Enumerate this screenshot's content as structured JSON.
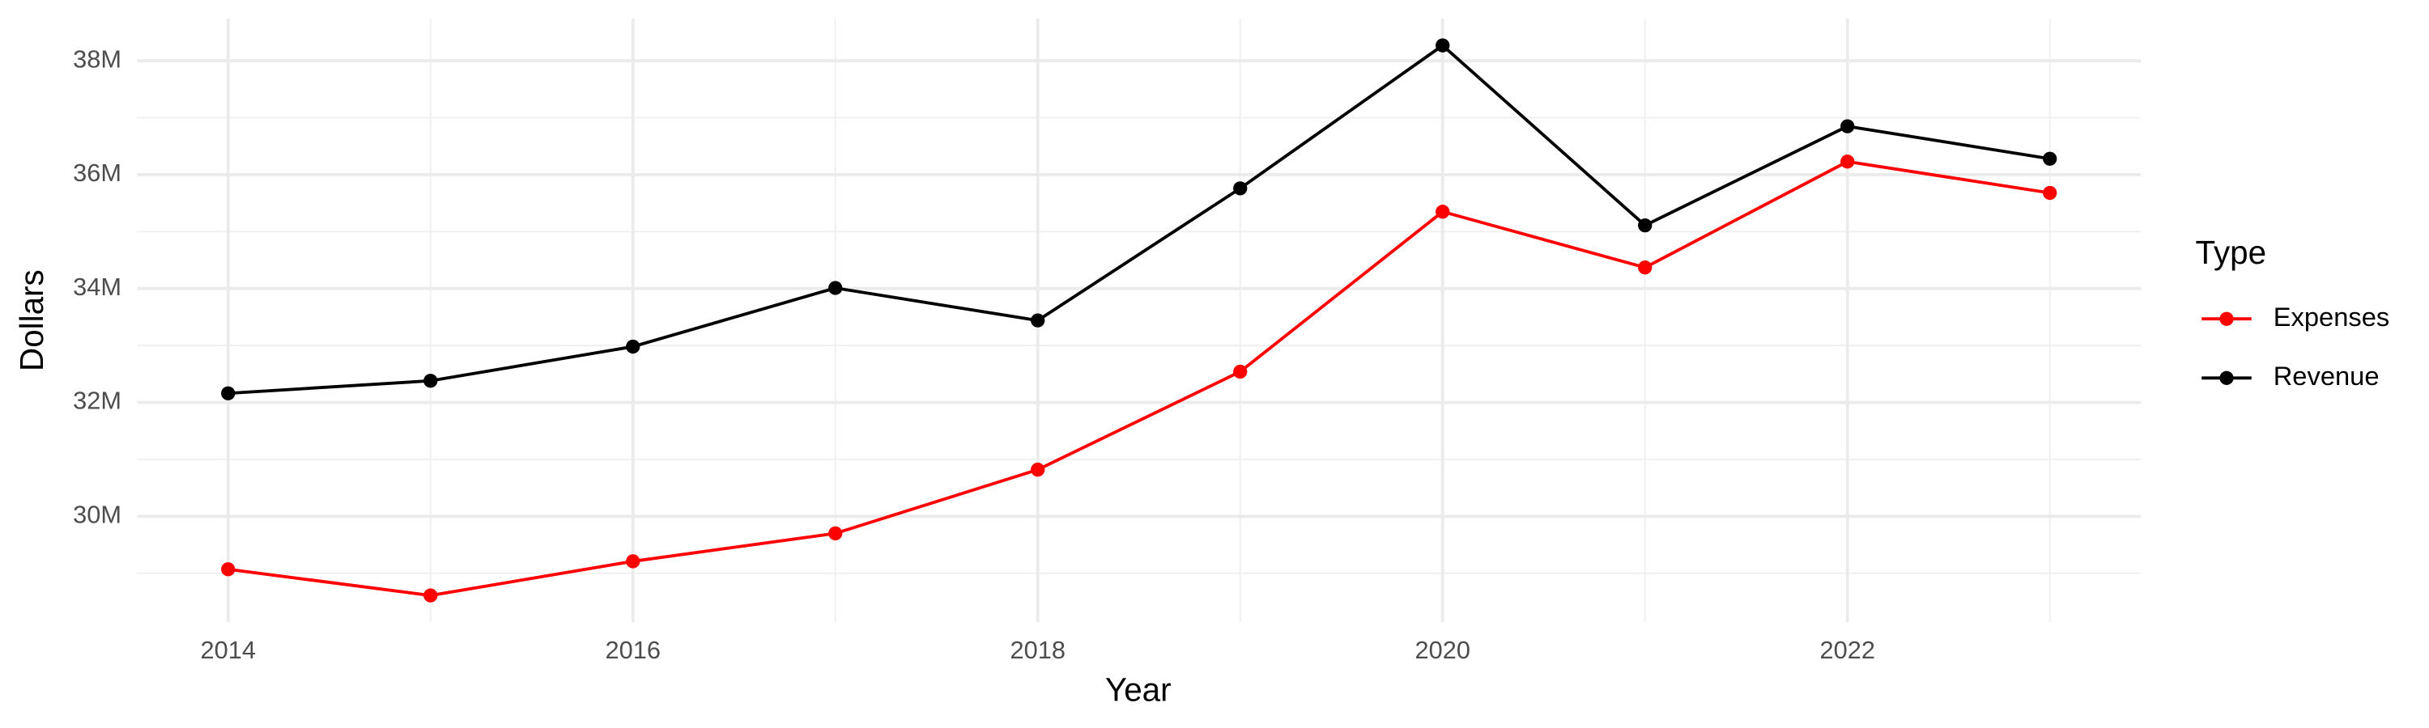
{
  "chart_data": {
    "type": "line",
    "x_label": "Year",
    "y_label": "Dollars",
    "legend_title": "Type",
    "x": [
      2014,
      2015,
      2016,
      2017,
      2018,
      2019,
      2020,
      2021,
      2022,
      2023
    ],
    "series": [
      {
        "name": "Expenses",
        "color": "#ff0000",
        "values": [
          29070000,
          28610000,
          29210000,
          29700000,
          30820000,
          32540000,
          35350000,
          34370000,
          36230000,
          35680000
        ]
      },
      {
        "name": "Revenue",
        "color": "#000000",
        "values": [
          32160000,
          32380000,
          32980000,
          34010000,
          33440000,
          35760000,
          38270000,
          35110000,
          36850000,
          36280000
        ]
      }
    ],
    "xlim": [
      2013.55,
      2023.45
    ],
    "xticks": [
      2014,
      2016,
      2018,
      2020,
      2022
    ],
    "ylim": [
      28140000,
      38740000
    ],
    "yticks": [
      {
        "value": 30000000,
        "label": "30M"
      },
      {
        "value": 32000000,
        "label": "32M"
      },
      {
        "value": 34000000,
        "label": "34M"
      },
      {
        "value": 36000000,
        "label": "36M"
      },
      {
        "value": 38000000,
        "label": "38M"
      }
    ],
    "grid": true,
    "legend": "right"
  }
}
